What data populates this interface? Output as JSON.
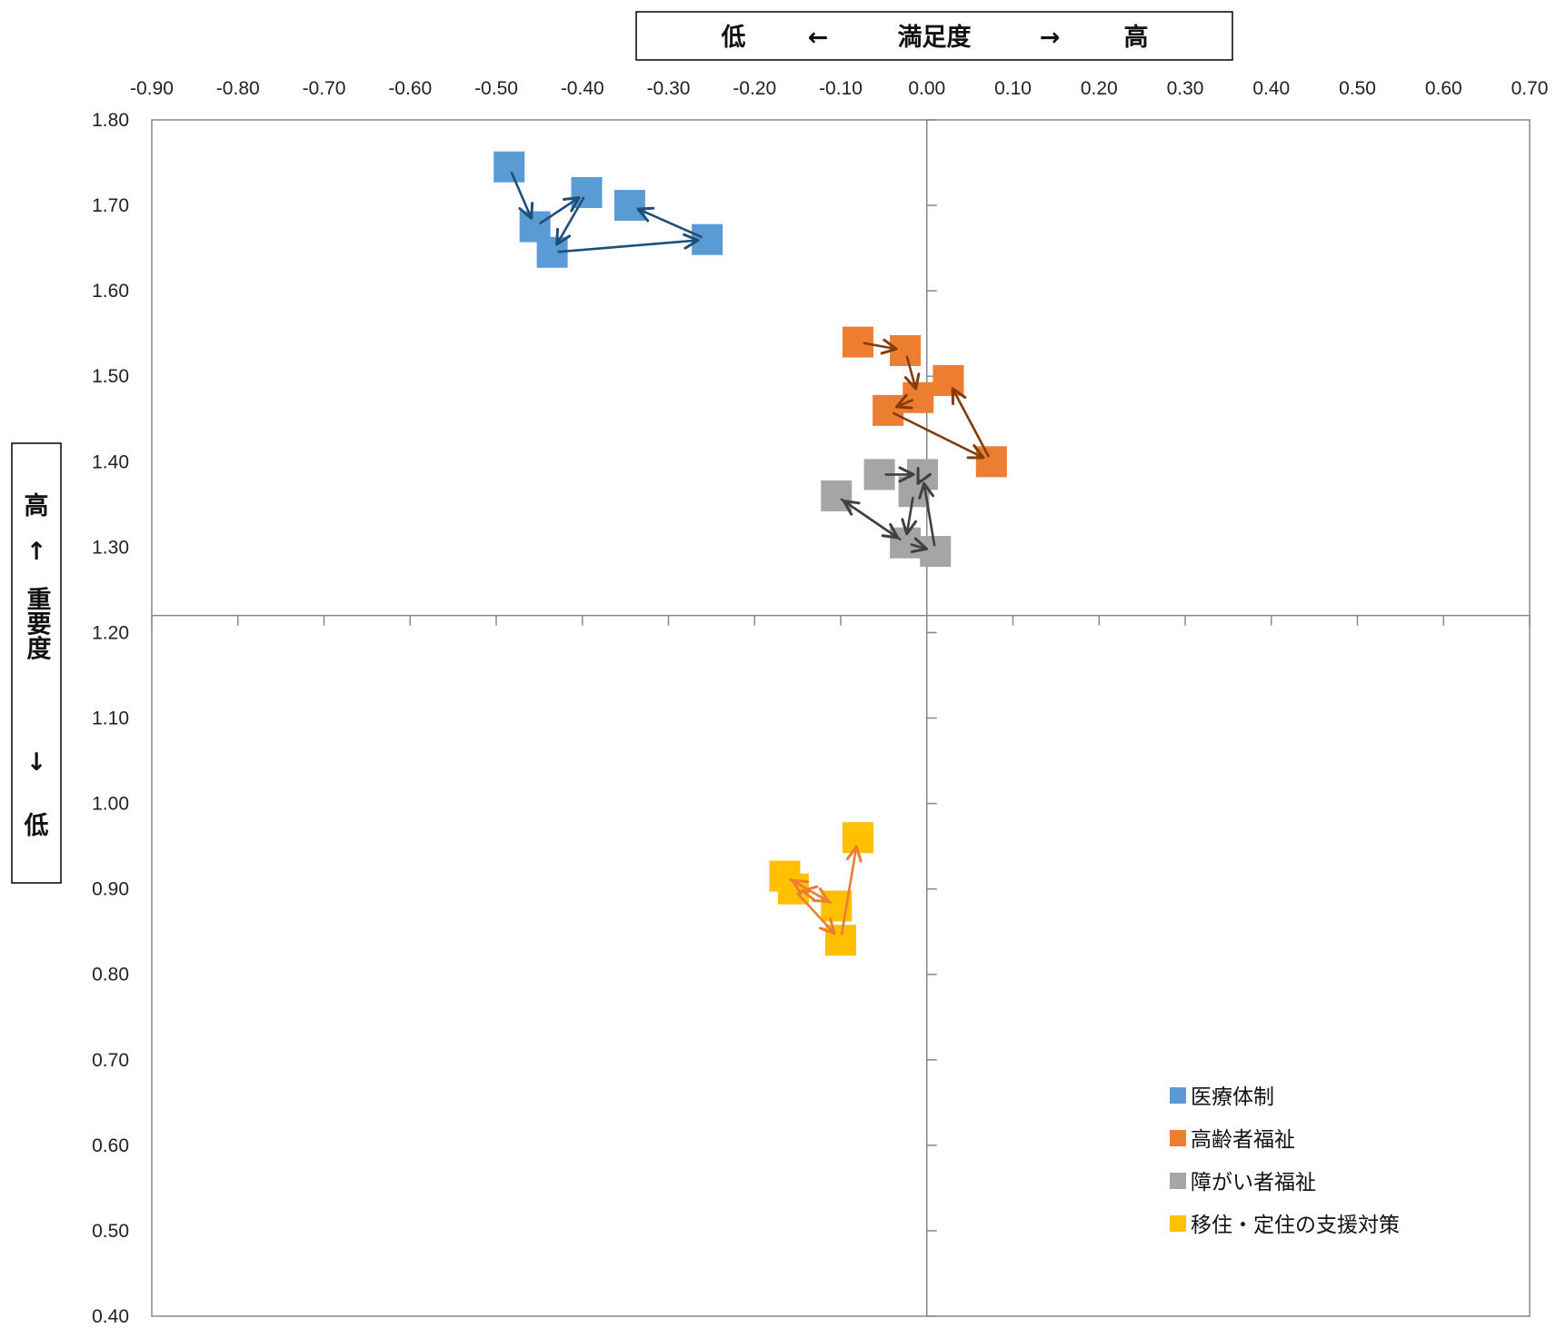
{
  "chart_data": {
    "type": "scatter",
    "x_axis_title": {
      "low": "低",
      "left_arrow": "←",
      "label": "満足度",
      "right_arrow": "→",
      "high": "高"
    },
    "y_axis_title": {
      "high": "高",
      "up_arrow": "↑",
      "label": "重要度",
      "down_arrow": "↓",
      "low": "低"
    },
    "xlim": [
      -0.9,
      0.7
    ],
    "ylim": [
      0.4,
      1.8
    ],
    "x_ticks": [
      "-0.90",
      "-0.80",
      "-0.70",
      "-0.60",
      "-0.50",
      "-0.40",
      "-0.30",
      "-0.20",
      "-0.10",
      "0.00",
      "0.10",
      "0.20",
      "0.30",
      "0.40",
      "0.50",
      "0.60",
      "0.70"
    ],
    "y_ticks": [
      "1.80",
      "1.70",
      "1.60",
      "1.50",
      "1.40",
      "1.30",
      "1.20",
      "1.10",
      "1.00",
      "0.90",
      "0.80",
      "0.70",
      "0.60",
      "0.50",
      "0.40"
    ],
    "x_tick_values": [
      -0.9,
      -0.8,
      -0.7,
      -0.6,
      -0.5,
      -0.4,
      -0.3,
      -0.2,
      -0.1,
      0.0,
      0.1,
      0.2,
      0.3,
      0.4,
      0.5,
      0.6,
      0.7
    ],
    "y_tick_values": [
      1.8,
      1.7,
      1.6,
      1.5,
      1.4,
      1.3,
      1.2,
      1.1,
      1.0,
      0.9,
      0.8,
      0.7,
      0.6,
      0.5,
      0.4
    ],
    "quadrant_origin": {
      "x": 0.0,
      "y": 1.22
    },
    "legend_position": "bottom-right",
    "marker": "square",
    "series": [
      {
        "name": "医療体制",
        "color": "#5B9BD5",
        "arrow_color": "#1F4E79",
        "x": [
          -0.485,
          -0.455,
          -0.435,
          -0.395,
          -0.345,
          -0.255
        ],
        "y": [
          1.745,
          1.675,
          1.645,
          1.715,
          1.7,
          1.66
        ],
        "path": [
          [
            -0.485,
            1.745
          ],
          [
            -0.455,
            1.675
          ],
          [
            -0.395,
            1.715
          ],
          [
            -0.435,
            1.645
          ],
          [
            -0.255,
            1.66
          ],
          [
            -0.345,
            1.7
          ]
        ]
      },
      {
        "name": "高齢者福祉",
        "color": "#ED7D31",
        "arrow_color": "#843C0C",
        "x": [
          -0.08,
          -0.025,
          -0.01,
          -0.045,
          0.025,
          0.075
        ],
        "y": [
          1.54,
          1.53,
          1.475,
          1.46,
          1.495,
          1.4
        ],
        "path": [
          [
            -0.08,
            1.54
          ],
          [
            -0.025,
            1.53
          ],
          [
            -0.01,
            1.475
          ],
          [
            -0.045,
            1.46
          ],
          [
            0.075,
            1.4
          ],
          [
            0.025,
            1.495
          ]
        ]
      },
      {
        "name": "障がい者福祉",
        "color": "#A5A5A5",
        "arrow_color": "#404040",
        "x": [
          -0.055,
          -0.005,
          -0.015,
          -0.105,
          -0.025,
          0.01
        ],
        "y": [
          1.385,
          1.385,
          1.365,
          1.36,
          1.305,
          1.295
        ],
        "path": [
          [
            -0.055,
            1.385
          ],
          [
            -0.005,
            1.385
          ],
          [
            -0.015,
            1.365
          ],
          [
            -0.025,
            1.305
          ],
          [
            -0.105,
            1.36
          ],
          [
            -0.025,
            1.305
          ],
          [
            0.01,
            1.295
          ],
          [
            -0.005,
            1.385
          ]
        ]
      },
      {
        "name": "移住・定住の支援対策",
        "color": "#FFC000",
        "arrow_color": "#ED7D31",
        "x": [
          -0.165,
          -0.155,
          -0.105,
          -0.1,
          -0.08
        ],
        "y": [
          0.915,
          0.9,
          0.88,
          0.84,
          0.96
        ],
        "path": [
          [
            -0.155,
            0.9
          ],
          [
            -0.1,
            0.84
          ],
          [
            -0.08,
            0.96
          ]
        ],
        "extra_arrows": [
          [
            [
              -0.165,
              0.915
            ],
            [
              -0.105,
              0.88
            ]
          ],
          [
            [
              -0.105,
              0.88
            ],
            [
              -0.165,
              0.915
            ]
          ],
          [
            [
              -0.13,
              0.895
            ],
            [
              -0.155,
              0.9
            ]
          ]
        ]
      }
    ]
  }
}
